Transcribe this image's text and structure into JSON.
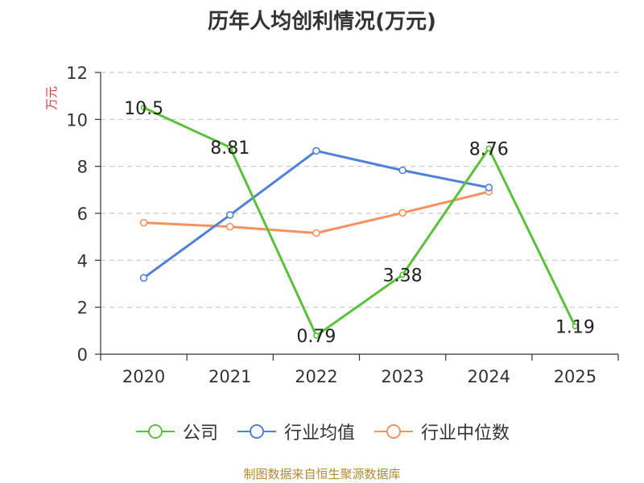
{
  "title": "历年人均创利情况(万元)",
  "footer": "制图数据来自恒生聚源数据库",
  "chart_data": {
    "type": "line",
    "title": "历年人均创利情况(万元)",
    "ylabel": "万元",
    "xlabel": "",
    "categories": [
      "2020",
      "2021",
      "2022",
      "2023",
      "2024",
      "2025"
    ],
    "ylim": [
      0,
      12
    ],
    "yticks": [
      0,
      2,
      4,
      6,
      8,
      10,
      12
    ],
    "grid": true,
    "legend_position": "bottom",
    "series": [
      {
        "name": "公司",
        "color": "#5ac13c",
        "values": [
          10.5,
          8.81,
          0.79,
          3.38,
          8.76,
          1.19
        ],
        "data_labels": [
          "10.5",
          "8.81",
          "0.79",
          "3.38",
          "8.76",
          "1.19"
        ]
      },
      {
        "name": "行业均值",
        "color": "#4f81d9",
        "values": [
          3.25,
          5.93,
          8.66,
          7.83,
          7.1,
          null
        ]
      },
      {
        "name": "行业中位数",
        "color": "#f5925e",
        "values": [
          5.6,
          5.43,
          5.16,
          6.02,
          6.92,
          null
        ]
      }
    ]
  }
}
